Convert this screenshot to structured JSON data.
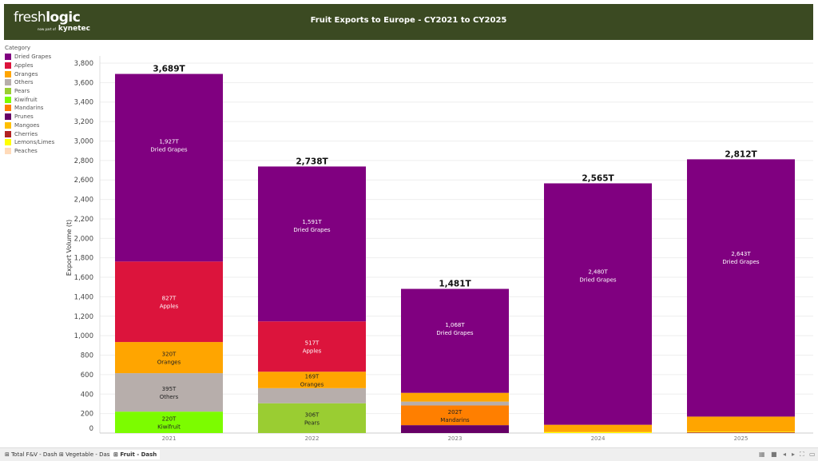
{
  "header": {
    "logo_main_light": "fresh",
    "logo_main_bold": "logic",
    "logo_sub_small": "now part of",
    "logo_sub": "kynetec",
    "title": "Fruit Exports to Europe - CY2021 to CY2025"
  },
  "legend": {
    "title": "Category",
    "items": [
      {
        "label": "Dried Grapes",
        "color": "#800080"
      },
      {
        "label": "Apples",
        "color": "#dc143c"
      },
      {
        "label": "Oranges",
        "color": "#ffa500"
      },
      {
        "label": "Others",
        "color": "#b7aeab"
      },
      {
        "label": "Pears",
        "color": "#9acd32"
      },
      {
        "label": "Kiwifruit",
        "color": "#7cfc00"
      },
      {
        "label": "Mandarins",
        "color": "#ff7f00"
      },
      {
        "label": "Prunes",
        "color": "#660066"
      },
      {
        "label": "Mangoes",
        "color": "#ffc000"
      },
      {
        "label": "Cherries",
        "color": "#b22222"
      },
      {
        "label": "Lemons/Limes",
        "color": "#ffff00"
      },
      {
        "label": "Peaches",
        "color": "#ffdab9"
      }
    ]
  },
  "chart_data": {
    "type": "bar",
    "stacked": true,
    "title": "Fruit Exports to Europe - CY2021 to CY2025",
    "ylabel": "Export Volume (t)",
    "xlabel": "",
    "ylim": [
      0,
      3800
    ],
    "yticks": [
      0,
      200,
      400,
      600,
      800,
      1000,
      1200,
      1400,
      1600,
      1800,
      2000,
      2200,
      2400,
      2600,
      2800,
      3000,
      3200,
      3400,
      3600,
      3800
    ],
    "ytick_labels": [
      "0",
      "200",
      "400",
      "600",
      "800",
      "1,000",
      "1,200",
      "1,400",
      "1,600",
      "1,800",
      "2,000",
      "2,200",
      "2,400",
      "2,600",
      "2,800",
      "3,000",
      "3,200",
      "3,400",
      "3,600",
      "3,800"
    ],
    "grid": true,
    "legend": "left",
    "categories": [
      "2021",
      "2022",
      "2023",
      "2024",
      "2025"
    ],
    "totals": [
      3689,
      2738,
      1481,
      2565,
      2812
    ],
    "total_labels": [
      "3,689T",
      "2,738T",
      "1,481T",
      "2,565T",
      "2,812T"
    ],
    "stacks": [
      [
        {
          "cat": "Kiwifruit",
          "value": 220,
          "label": "220T"
        },
        {
          "cat": "Others",
          "value": 395,
          "label": "395T"
        },
        {
          "cat": "Oranges",
          "value": 320,
          "label": "320T"
        },
        {
          "cat": "Apples",
          "value": 827,
          "label": "827T"
        },
        {
          "cat": "Dried Grapes",
          "value": 1927,
          "label": "1,927T"
        }
      ],
      [
        {
          "cat": "Pears",
          "value": 306,
          "label": "306T"
        },
        {
          "cat": "Others",
          "value": 155
        },
        {
          "cat": "Oranges",
          "value": 169,
          "label": "169T"
        },
        {
          "cat": "Apples",
          "value": 517,
          "label": "517T"
        },
        {
          "cat": "Dried Grapes",
          "value": 1591,
          "label": "1,591T"
        }
      ],
      [
        {
          "cat": "Prunes",
          "value": 81
        },
        {
          "cat": "Mandarins",
          "value": 202,
          "label": "202T"
        },
        {
          "cat": "Others",
          "value": 40
        },
        {
          "cat": "Oranges",
          "value": 90
        },
        {
          "cat": "Dried Grapes",
          "value": 1068,
          "label": "1,068T"
        }
      ],
      [
        {
          "cat": "Lemons/Limes",
          "value": 10
        },
        {
          "cat": "Oranges",
          "value": 75
        },
        {
          "cat": "Dried Grapes",
          "value": 2480,
          "label": "2,480T"
        }
      ],
      [
        {
          "cat": "Cherries",
          "value": 7
        },
        {
          "cat": "Lemons/Limes",
          "value": 7
        },
        {
          "cat": "Oranges",
          "value": 155
        },
        {
          "cat": "Dried Grapes",
          "value": 2643,
          "label": "2,643T"
        }
      ]
    ]
  },
  "tabs": [
    {
      "label": "Total F&V - Dash"
    },
    {
      "label": "Vegetable - Dash"
    },
    {
      "label": "Fruit - Dash",
      "active": true
    }
  ]
}
